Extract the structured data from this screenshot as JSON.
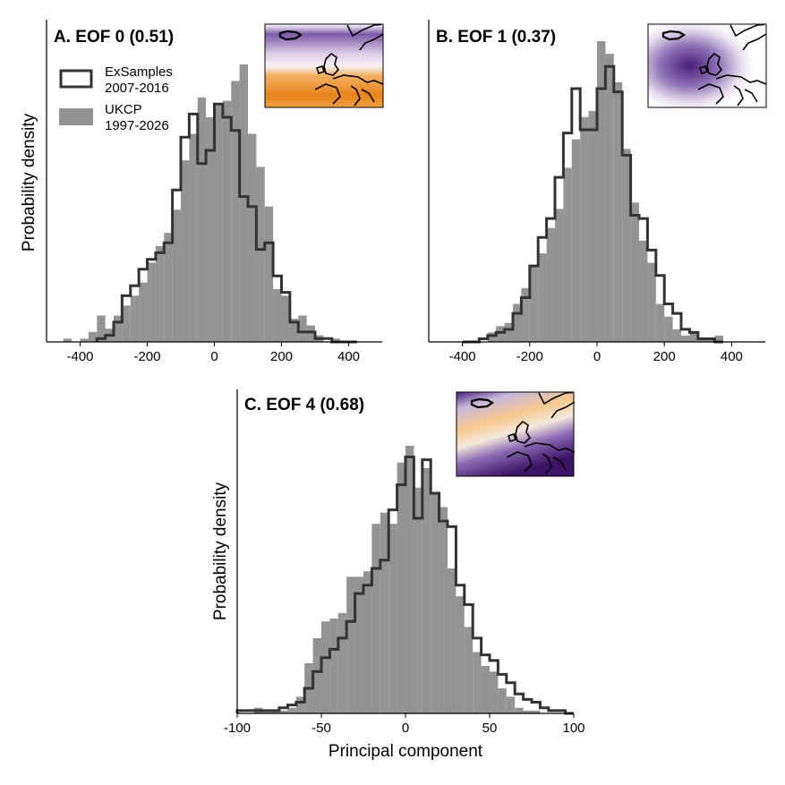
{
  "legend": {
    "exsamples": {
      "label": "ExSamples",
      "period": "2007-2016"
    },
    "ukcp": {
      "label": "UKCP",
      "period": "1997-2026"
    }
  },
  "colors": {
    "ukcp_fill": "#939592",
    "exsamples_line": "#333333",
    "map_purple": "#4a1d7a",
    "map_orange": "#e8831c"
  },
  "x_axis_title": "Principal component",
  "y_axis_title": "Probability density",
  "chart_data": [
    {
      "type": "bar",
      "title": "A. EOF 0 (0.51)",
      "map_pattern": "purple-north-orange-south",
      "xlim": [
        -500,
        500
      ],
      "xticks": [
        -400,
        -200,
        0,
        200,
        400
      ],
      "bin_width": 25,
      "series": [
        {
          "name": "UKCP",
          "kind": "histogram",
          "bins_start": [
            -450,
            -425,
            -400,
            -375,
            -350,
            -325,
            -300,
            -275,
            -250,
            -225,
            -200,
            -175,
            -150,
            -125,
            -100,
            -75,
            -50,
            -25,
            0,
            25,
            50,
            75,
            100,
            125,
            150,
            175,
            200,
            225,
            250,
            275,
            300,
            325,
            350
          ],
          "values": [
            1,
            0,
            1,
            3,
            8,
            4,
            8,
            11,
            14,
            18,
            24,
            29,
            33,
            40,
            55,
            63,
            74,
            68,
            72,
            73,
            79,
            84,
            63,
            53,
            41,
            16,
            14,
            7,
            8,
            5,
            2,
            0,
            1
          ]
        },
        {
          "name": "ExSamples",
          "kind": "step",
          "bins_start": [
            -350,
            -325,
            -300,
            -275,
            -250,
            -225,
            -200,
            -175,
            -150,
            -125,
            -100,
            -75,
            -50,
            -25,
            0,
            25,
            50,
            75,
            100,
            125,
            150,
            175,
            200,
            225,
            250,
            275,
            300,
            325,
            350,
            375,
            400
          ],
          "values": [
            1,
            2,
            6,
            14,
            17,
            22,
            25,
            27,
            30,
            46,
            62,
            69,
            54,
            58,
            72,
            68,
            64,
            44,
            41,
            28,
            30,
            20,
            15,
            6,
            3,
            3,
            1,
            1,
            0,
            0,
            0
          ]
        }
      ]
    },
    {
      "type": "bar",
      "title": "B. EOF 1 (0.37)",
      "map_pattern": "purple-center",
      "xlim": [
        -500,
        500
      ],
      "xticks": [
        -400,
        -200,
        0,
        200,
        400
      ],
      "bin_width": 25,
      "series": [
        {
          "name": "UKCP",
          "kind": "histogram",
          "bins_start": [
            -325,
            -300,
            -275,
            -250,
            -225,
            -200,
            -175,
            -150,
            -125,
            -100,
            -75,
            -50,
            -25,
            0,
            25,
            50,
            75,
            100,
            125,
            150,
            175,
            200,
            225,
            250,
            275,
            300,
            325,
            350
          ],
          "values": [
            3,
            5,
            6,
            12,
            17,
            24,
            28,
            36,
            42,
            55,
            64,
            71,
            73,
            95,
            91,
            82,
            61,
            44,
            32,
            25,
            12,
            8,
            4,
            2,
            3,
            1,
            1,
            2
          ]
        },
        {
          "name": "ExSamples",
          "kind": "step",
          "bins_start": [
            -400,
            -375,
            -350,
            -325,
            -300,
            -275,
            -250,
            -225,
            -200,
            -175,
            -150,
            -125,
            -100,
            -75,
            -50,
            -25,
            0,
            25,
            50,
            75,
            100,
            125,
            150,
            175,
            200,
            225,
            250,
            275,
            300,
            325,
            350
          ],
          "values": [
            0,
            0,
            1,
            2,
            3,
            4,
            9,
            14,
            24,
            33,
            39,
            52,
            66,
            80,
            67,
            67,
            80,
            87,
            79,
            59,
            40,
            39,
            29,
            21,
            12,
            9,
            4,
            3,
            1,
            1,
            0
          ]
        }
      ]
    },
    {
      "type": "bar",
      "title": "C. EOF 4 (0.68)",
      "map_pattern": "orange-band-purple-southwest",
      "xlim": [
        -100,
        100
      ],
      "xticks": [
        -100,
        -50,
        0,
        50,
        100
      ],
      "bin_width": 5,
      "series": [
        {
          "name": "UKCP",
          "kind": "histogram",
          "bins_start": [
            -90,
            -85,
            -80,
            -75,
            -70,
            -65,
            -60,
            -55,
            -50,
            -45,
            -40,
            -35,
            -30,
            -25,
            -20,
            -15,
            -10,
            -5,
            0,
            5,
            10,
            15,
            20,
            25,
            30,
            35,
            40,
            45,
            50,
            55,
            60,
            65,
            70,
            75
          ],
          "values": [
            2,
            1,
            1,
            1,
            2,
            6,
            18,
            27,
            33,
            34,
            36,
            49,
            49,
            51,
            68,
            72,
            68,
            90,
            96,
            81,
            88,
            79,
            74,
            52,
            42,
            31,
            22,
            17,
            15,
            9,
            6,
            2,
            1,
            1
          ]
        },
        {
          "name": "ExSamples",
          "kind": "step",
          "bins_start": [
            -100,
            -95,
            -90,
            -85,
            -80,
            -75,
            -70,
            -65,
            -60,
            -55,
            -50,
            -45,
            -40,
            -35,
            -30,
            -25,
            -20,
            -15,
            -10,
            -5,
            0,
            5,
            10,
            15,
            20,
            25,
            30,
            35,
            40,
            45,
            50,
            55,
            60,
            65,
            70,
            75,
            80,
            85,
            90,
            95
          ],
          "values": [
            1,
            1,
            1,
            1,
            1,
            2,
            3,
            4,
            9,
            15,
            20,
            23,
            27,
            33,
            43,
            46,
            52,
            55,
            73,
            82,
            92,
            70,
            91,
            79,
            69,
            67,
            46,
            39,
            27,
            21,
            19,
            14,
            11,
            7,
            5,
            4,
            2,
            1,
            1,
            0
          ]
        }
      ]
    }
  ]
}
